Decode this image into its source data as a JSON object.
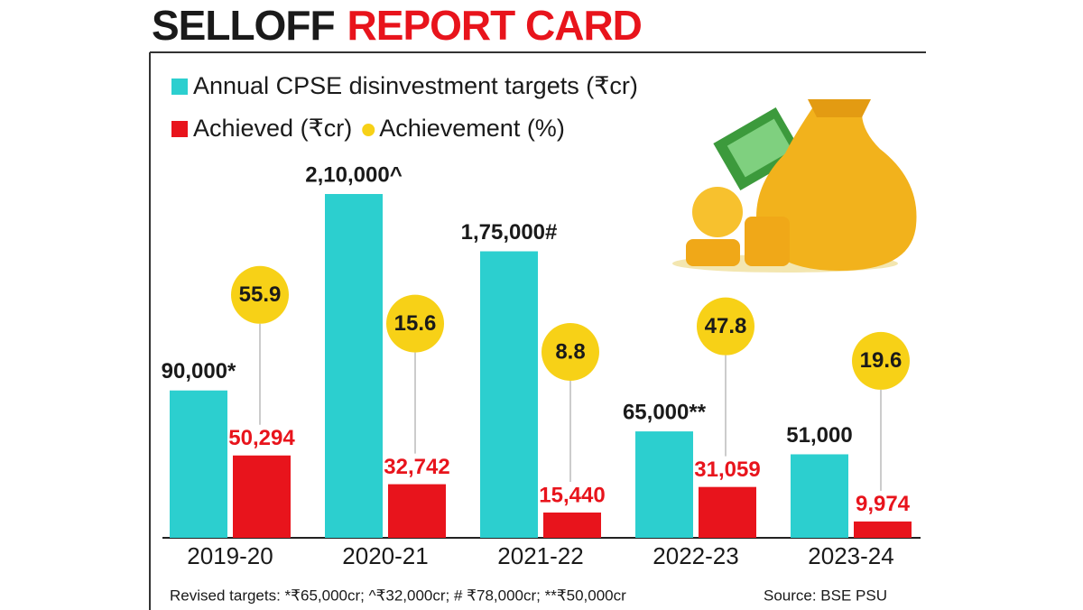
{
  "chart_data": {
    "type": "bar",
    "title": [
      "SELLOFF",
      "REPORT CARD"
    ],
    "categories": [
      "2019-20",
      "2020-21",
      "2021-22",
      "2022-23",
      "2023-24"
    ],
    "series": [
      {
        "name": "Annual CPSE disinvestment targets (₹cr)",
        "color": "#2ccfcf",
        "values": [
          90000,
          210000,
          175000,
          65000,
          51000
        ],
        "value_labels": [
          "90,000*",
          "2,10,000^",
          "1,75,000#",
          "65,000**",
          "51,000"
        ]
      },
      {
        "name": "Achieved (₹cr)",
        "color": "#e8141c",
        "values": [
          50294,
          32742,
          15440,
          31059,
          9974
        ],
        "value_labels": [
          "50,294",
          "32,742",
          "15,440",
          "31,059",
          "9,974"
        ]
      },
      {
        "name": "Achievement (%)",
        "color": "#f7d117",
        "values": [
          55.9,
          15.6,
          8.8,
          47.8,
          19.6
        ]
      }
    ],
    "footnote": "Revised targets: *₹65,000cr; ^₹32,000cr; # ₹78,000cr; **₹50,000cr",
    "source": "Source: BSE PSU"
  }
}
